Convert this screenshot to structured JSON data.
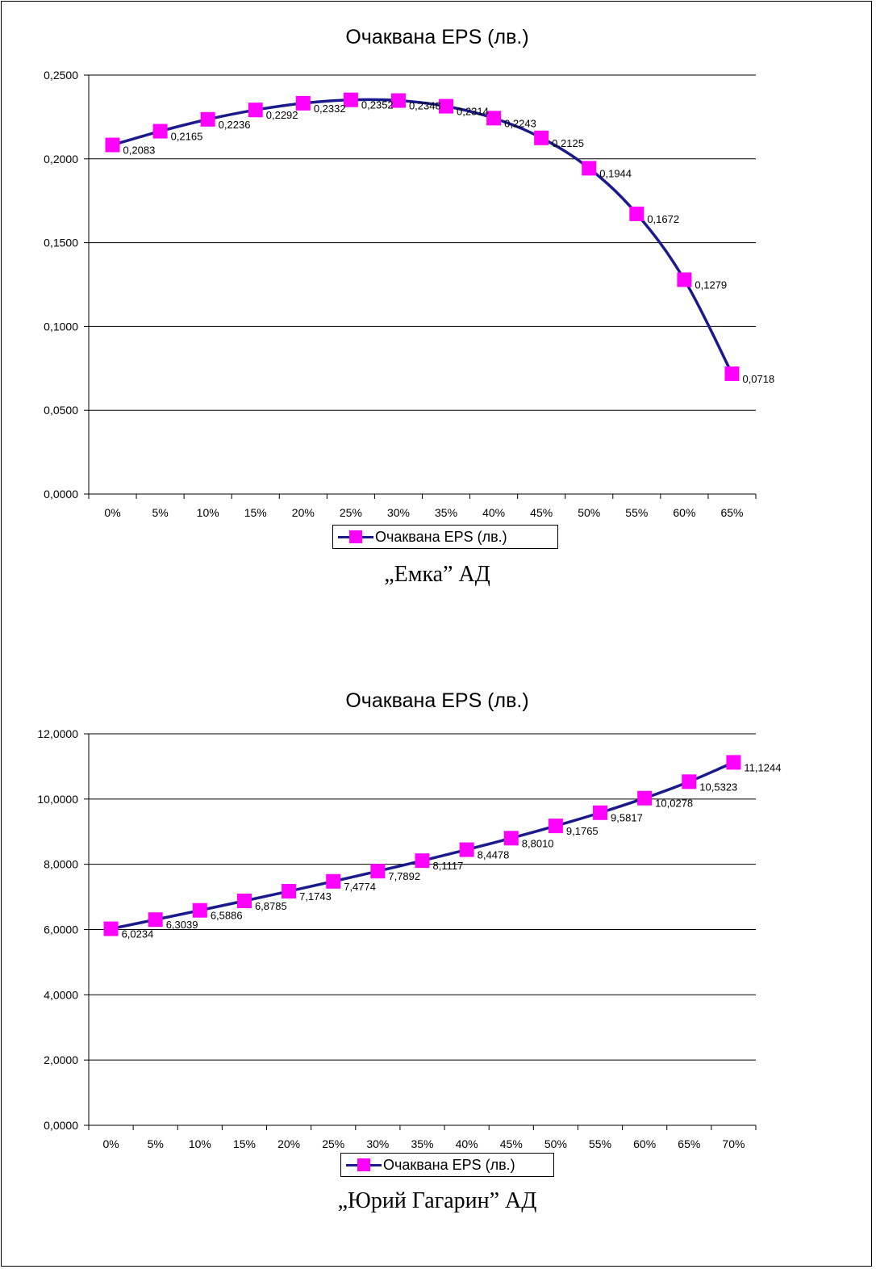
{
  "colors": {
    "line": "#1a1a8c",
    "marker": "#ff00ff",
    "grid": "#000000"
  },
  "chart_data": [
    {
      "type": "line",
      "title": "Очаквана EPS (лв.)",
      "categories": [
        "0%",
        "5%",
        "10%",
        "15%",
        "20%",
        "25%",
        "30%",
        "35%",
        "40%",
        "45%",
        "50%",
        "55%",
        "60%",
        "65%"
      ],
      "series": [
        {
          "name": "Очаквана EPS (лв.)",
          "values": [
            0.2083,
            0.2165,
            0.2236,
            0.2292,
            0.2332,
            0.2352,
            0.2348,
            0.2314,
            0.2243,
            0.2125,
            0.1944,
            0.1672,
            0.1279,
            0.0718
          ],
          "labels": [
            "0,2083",
            "0,2165",
            "0,2236",
            "0,2292",
            "0,2332",
            "0,2352",
            "0,2348",
            "0,2314",
            "0,2243",
            "0,2125",
            "0,1944",
            "0,1672",
            "0,1279",
            "0,0718"
          ]
        }
      ],
      "ylim": [
        0,
        0.25
      ],
      "yticks": [
        0,
        0.05,
        0.1,
        0.15,
        0.2,
        0.25
      ],
      "ytick_labels": [
        "0,0000",
        "0,0500",
        "0,1000",
        "0,1500",
        "0,2000",
        "0,2500"
      ],
      "grid": true,
      "legend": "bottom",
      "caption": "„Емка” АД"
    },
    {
      "type": "line",
      "title": "Очаквана EPS (лв.)",
      "categories": [
        "0%",
        "5%",
        "10%",
        "15%",
        "20%",
        "25%",
        "30%",
        "35%",
        "40%",
        "45%",
        "50%",
        "55%",
        "60%",
        "65%",
        "70%"
      ],
      "series": [
        {
          "name": "Очаквана EPS (лв.)",
          "values": [
            6.0234,
            6.3039,
            6.5886,
            6.8785,
            7.1743,
            7.4774,
            7.7892,
            8.1117,
            8.4478,
            8.801,
            9.1765,
            9.5817,
            10.0278,
            10.5323,
            11.1244
          ],
          "labels": [
            "6,0234",
            "6,3039",
            "6,5886",
            "6,8785",
            "7,1743",
            "7,4774",
            "7,7892",
            "8,1117",
            "8,4478",
            "8,8010",
            "9,1765",
            "9,5817",
            "10,0278",
            "10,5323",
            "11,1244"
          ]
        }
      ],
      "ylim": [
        0,
        12
      ],
      "yticks": [
        0,
        2,
        4,
        6,
        8,
        10,
        12
      ],
      "ytick_labels": [
        "0,0000",
        "2,0000",
        "4,0000",
        "6,0000",
        "8,0000",
        "10,0000",
        "12,0000"
      ],
      "grid": true,
      "legend": "bottom",
      "caption": "„Юрий Гагарин” АД"
    }
  ]
}
